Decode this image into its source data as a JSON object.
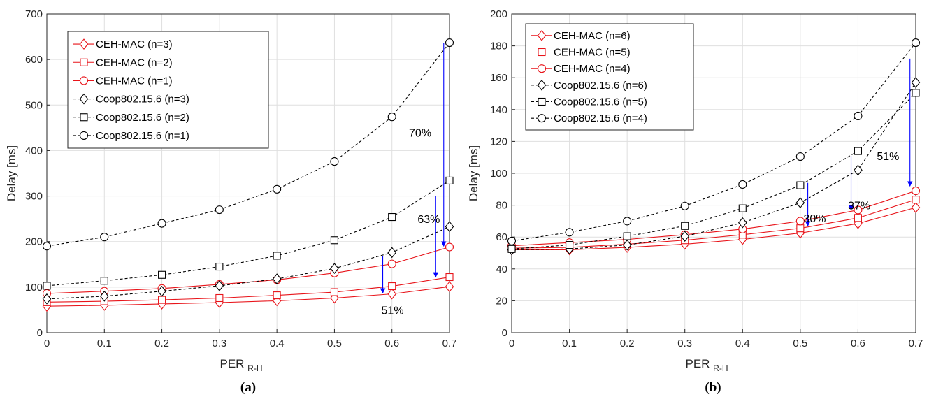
{
  "chart_data": [
    {
      "type": "line",
      "caption": "(a)",
      "xlabel": "PER",
      "xlabel_sub": "R-H",
      "ylabel": "Delay [ms]",
      "xlim": [
        0,
        0.7
      ],
      "ylim": [
        0,
        700
      ],
      "xticks": [
        "0",
        "0.1",
        "0.2",
        "0.3",
        "0.4",
        "0.5",
        "0.6",
        "0.7"
      ],
      "yticks": [
        "0",
        "100",
        "200",
        "300",
        "400",
        "500",
        "600",
        "700"
      ],
      "grid": true,
      "legend_position": "top-left",
      "x": [
        0,
        0.1,
        0.2,
        0.3,
        0.4,
        0.5,
        0.6,
        0.7
      ],
      "series": [
        {
          "name": "CEH-MAC (n=3)",
          "marker": "diamond",
          "style": "solid",
          "color": "#e8141a",
          "values": [
            58,
            60,
            63,
            66,
            70,
            76,
            85,
            101
          ]
        },
        {
          "name": "CEH-MAC (n=2)",
          "marker": "square",
          "style": "solid",
          "color": "#e8141a",
          "values": [
            67,
            69,
            72,
            76,
            82,
            89,
            102,
            122
          ]
        },
        {
          "name": "CEH-MAC (n=1)",
          "marker": "circle",
          "style": "solid",
          "color": "#e8141a",
          "values": [
            86,
            91,
            97,
            106,
            116,
            131,
            151,
            188
          ]
        },
        {
          "name": "Coop802.15.6 (n=3)",
          "marker": "diamond",
          "style": "dashed",
          "color": "#000000",
          "values": [
            74,
            80,
            91,
            103,
            118,
            141,
            176,
            233
          ]
        },
        {
          "name": "Coop802.15.6 (n=2)",
          "marker": "square",
          "style": "dashed",
          "color": "#000000",
          "values": [
            103,
            114,
            127,
            145,
            169,
            203,
            254,
            334
          ]
        },
        {
          "name": "Coop802.15.6 (n=1)",
          "marker": "circle",
          "style": "dashed",
          "color": "#000000",
          "values": [
            190,
            210,
            240,
            270,
            315,
            376,
            474,
            637
          ]
        }
      ],
      "annotations": [
        {
          "text": "70%",
          "tx": 0.649,
          "ty": 440,
          "ax": 0.69,
          "ay1": 637,
          "ay2": 190
        },
        {
          "text": "63%",
          "tx": 0.664,
          "ty": 250,
          "ax": 0.676,
          "ay1": 300,
          "ay2": 122
        },
        {
          "text": "51%",
          "tx": 0.601,
          "ty": 50,
          "ax": 0.584,
          "ay1": 168,
          "ay2": 87
        }
      ]
    },
    {
      "type": "line",
      "caption": "(b)",
      "xlabel": "PER",
      "xlabel_sub": "R-H",
      "ylabel": "Delay [ms]",
      "xlim": [
        0,
        0.7
      ],
      "ylim": [
        0,
        200
      ],
      "xticks": [
        "0",
        "0.1",
        "0.2",
        "0.3",
        "0.4",
        "0.5",
        "0.6",
        "0.7"
      ],
      "yticks": [
        "0",
        "20",
        "40",
        "60",
        "80",
        "100",
        "120",
        "140",
        "160",
        "180",
        "200"
      ],
      "grid": true,
      "legend_position": "top-left",
      "x": [
        0,
        0.1,
        0.2,
        0.3,
        0.4,
        0.5,
        0.6,
        0.7
      ],
      "series": [
        {
          "name": "CEH-MAC (n=6)",
          "marker": "diamond",
          "style": "solid",
          "color": "#e8141a",
          "values": [
            52,
            52,
            53.5,
            55.5,
            58.5,
            62.5,
            68.5,
            78.5
          ]
        },
        {
          "name": "CEH-MAC (n=5)",
          "marker": "square",
          "style": "solid",
          "color": "#e8141a",
          "values": [
            53,
            53.5,
            55.5,
            58,
            61.5,
            65.5,
            72,
            83.5
          ]
        },
        {
          "name": "CEH-MAC (n=4)",
          "marker": "circle",
          "style": "solid",
          "color": "#e8141a",
          "values": [
            54.5,
            56.5,
            58.5,
            61.5,
            65,
            70,
            77,
            89
          ]
        },
        {
          "name": "Coop802.15.6 (n=6)",
          "marker": "diamond",
          "style": "dashed",
          "color": "#000000",
          "values": [
            52,
            52.5,
            55,
            60.5,
            69,
            81.5,
            102,
            157
          ]
        },
        {
          "name": "Coop802.15.6 (n=5)",
          "marker": "square",
          "style": "dashed",
          "color": "#000000",
          "values": [
            52.5,
            55,
            60.5,
            67,
            78,
            92.5,
            114,
            150.5
          ]
        },
        {
          "name": "Coop802.15.6 (n=4)",
          "marker": "circle",
          "style": "dashed",
          "color": "#000000",
          "values": [
            57.5,
            63,
            70,
            79.5,
            93,
            110.5,
            136,
            182
          ]
        }
      ],
      "annotations": [
        {
          "text": "51%",
          "tx": 0.652,
          "ty": 111,
          "ax": 0.69,
          "ay1": 172,
          "ay2": 92
        },
        {
          "text": "37%",
          "tx": 0.602,
          "ty": 80,
          "ax": 0.588,
          "ay1": 111,
          "ay2": 77
        },
        {
          "text": "30%",
          "tx": 0.525,
          "ty": 72,
          "ax": 0.513,
          "ay1": 94,
          "ay2": 67
        }
      ]
    }
  ]
}
